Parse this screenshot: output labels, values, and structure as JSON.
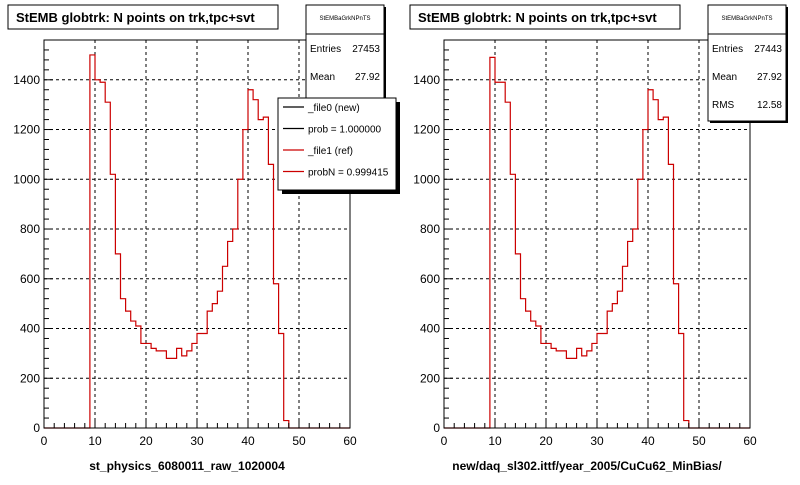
{
  "chart_data": [
    {
      "type": "line",
      "title": "StEMB globtrk: N points on trk,tpc+svt",
      "xlabel": "st_physics_6080011_raw_1020004",
      "ylabel": "",
      "xlim": [
        0,
        60
      ],
      "ylim": [
        0,
        1560
      ],
      "xticks": [
        "0",
        "10",
        "20",
        "30",
        "40",
        "50",
        "60"
      ],
      "yticks": [
        "0",
        "200",
        "400",
        "600",
        "800",
        "1000",
        "1200",
        "1400"
      ],
      "grid": true,
      "stats": {
        "name": "StEMBaGrkNPnTS",
        "entries_label": "Entries",
        "entries": "27453",
        "mean_label": "Mean",
        "mean": "27.92"
      },
      "legend": {
        "placement": "top-right",
        "entries": [
          {
            "label": "_file0 (new)",
            "color": "#000000"
          },
          {
            "label": "prob = 1.000000",
            "color": "#000000"
          },
          {
            "label": "_file1 (ref)",
            "color": "#cc0000"
          },
          {
            "label": "probN = 0.999415",
            "color": "#cc0000"
          }
        ]
      },
      "series": [
        {
          "color": "#cc0000",
          "bin_edges_start": 0,
          "bin_width": 1,
          "values": [
            0,
            0,
            0,
            0,
            0,
            0,
            0,
            0,
            0,
            1500,
            1400,
            1390,
            1310,
            1020,
            700,
            520,
            470,
            430,
            410,
            340,
            340,
            320,
            310,
            310,
            280,
            280,
            320,
            290,
            310,
            340,
            380,
            380,
            470,
            500,
            550,
            650,
            750,
            800,
            1000,
            1200,
            1360,
            1320,
            1240,
            1250,
            1060,
            580,
            380,
            30,
            0,
            0,
            0,
            0,
            0,
            0,
            0,
            0,
            0,
            0,
            0,
            0
          ]
        }
      ]
    },
    {
      "type": "line",
      "title": "StEMB globtrk: N points on trk,tpc+svt",
      "xlabel": "new/daq_sl302.ittf/year_2005/CuCu62_MinBias/",
      "ylabel": "",
      "xlim": [
        0,
        60
      ],
      "ylim": [
        0,
        1560
      ],
      "xticks": [
        "0",
        "10",
        "20",
        "30",
        "40",
        "50",
        "60"
      ],
      "yticks": [
        "0",
        "200",
        "400",
        "600",
        "800",
        "1000",
        "1200",
        "1400"
      ],
      "grid": true,
      "stats": {
        "name": "StEMBaGrkNPnTS",
        "entries_label": "Entries",
        "entries": "27443",
        "mean_label": "Mean",
        "mean": "27.92",
        "rms_label": "RMS",
        "rms": "12.58"
      },
      "series": [
        {
          "color": "#cc0000",
          "bin_edges_start": 0,
          "bin_width": 1,
          "values": [
            0,
            0,
            0,
            0,
            0,
            0,
            0,
            0,
            0,
            1490,
            1390,
            1390,
            1310,
            1020,
            700,
            520,
            470,
            430,
            410,
            340,
            340,
            320,
            310,
            310,
            280,
            280,
            320,
            290,
            310,
            340,
            380,
            380,
            470,
            500,
            550,
            650,
            750,
            800,
            1000,
            1200,
            1360,
            1320,
            1240,
            1250,
            1060,
            580,
            380,
            30,
            0,
            0,
            0,
            0,
            0,
            0,
            0,
            0,
            0,
            0,
            0,
            0
          ]
        }
      ]
    }
  ]
}
